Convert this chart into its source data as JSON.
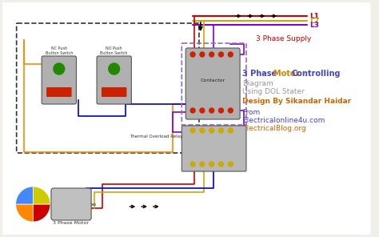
{
  "bg_color": "#f0f0e8",
  "title_parts": [
    {
      "text": "3 Phase ",
      "color": "#4444cc",
      "fontsize": 9,
      "bold": true
    },
    {
      "text": "Motor ",
      "color": "#cc8800",
      "fontsize": 9,
      "bold": true
    },
    {
      "text": "Controlling",
      "color": "#4444cc",
      "fontsize": 9,
      "bold": true
    }
  ],
  "subtitle_lines": [
    {
      "text": "Diagram",
      "color": "#999999",
      "fontsize": 8
    },
    {
      "text": "Using DOL Stater",
      "color": "#999999",
      "fontsize": 8
    },
    {
      "text": "Design By Sikandar Haidar",
      "color": "#cc6600",
      "fontsize": 8,
      "bold": true
    },
    {
      "text": "From",
      "color": "#4444cc",
      "fontsize": 8
    },
    {
      "text": "Electricalonline4u.com",
      "color": "#4444cc",
      "fontsize": 8
    },
    {
      "text": "ElectricalBlog.org",
      "color": "#cc6600",
      "fontsize": 8
    }
  ],
  "L1_color": "#cc0000",
  "L2_color": "#ccaa00",
  "L3_color": "#8800cc",
  "orange_color": "#ff8800",
  "blue_color": "#0000cc",
  "gray_color": "#888888",
  "dashed_box_color": "#333333",
  "contactor_box_color": "#9966cc"
}
